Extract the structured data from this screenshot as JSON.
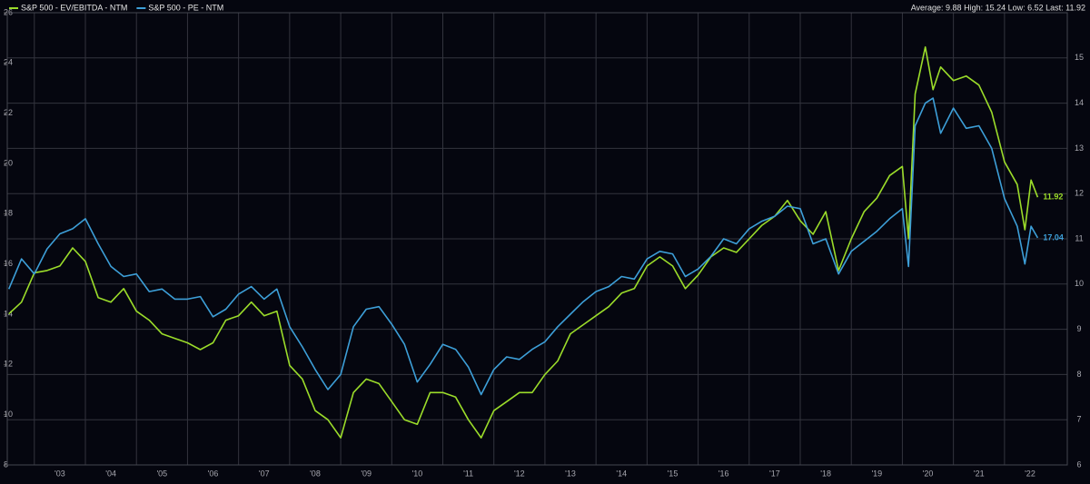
{
  "chart_data": {
    "type": "line",
    "stats": "Average: 9.88 High: 15.24 Low: 6.52 Last: 11.92",
    "legend": "top-left",
    "grid": true,
    "x": [
      2002.5,
      2002.75,
      2003,
      2003.25,
      2003.5,
      2003.75,
      2004,
      2004.25,
      2004.5,
      2004.75,
      2005,
      2005.25,
      2005.5,
      2005.75,
      2006,
      2006.25,
      2006.5,
      2006.75,
      2007,
      2007.25,
      2007.5,
      2007.75,
      2008,
      2008.25,
      2008.5,
      2008.75,
      2009,
      2009.25,
      2009.5,
      2009.75,
      2010,
      2010.25,
      2010.5,
      2010.75,
      2011,
      2011.25,
      2011.5,
      2011.75,
      2012,
      2012.25,
      2012.5,
      2012.75,
      2013,
      2013.25,
      2013.5,
      2013.75,
      2014,
      2014.25,
      2014.5,
      2014.75,
      2015,
      2015.25,
      2015.5,
      2015.75,
      2016,
      2016.25,
      2016.5,
      2016.75,
      2017,
      2017.25,
      2017.5,
      2017.75,
      2018,
      2018.25,
      2018.5,
      2018.75,
      2019,
      2019.25,
      2019.5,
      2019.75,
      2020,
      2020.12,
      2020.25,
      2020.45,
      2020.6,
      2020.75,
      2021,
      2021.25,
      2021.5,
      2021.75,
      2022,
      2022.25,
      2022.4,
      2022.52,
      2022.65
    ],
    "series": [
      {
        "name": "S&P 500 - EV/EBITDA - NTM",
        "color": "#9bdc2a",
        "axis": "y2",
        "values": [
          9.34,
          9.6,
          10.25,
          10.3,
          10.4,
          10.8,
          10.5,
          9.7,
          9.6,
          9.9,
          9.4,
          9.2,
          8.9,
          8.8,
          8.7,
          8.55,
          8.7,
          9.2,
          9.3,
          9.6,
          9.3,
          9.4,
          8.2,
          7.9,
          7.2,
          7.0,
          6.6,
          7.6,
          7.9,
          7.8,
          7.4,
          7.0,
          6.9,
          7.6,
          7.6,
          7.5,
          7.0,
          6.6,
          7.2,
          7.4,
          7.6,
          7.6,
          8.0,
          8.3,
          8.9,
          9.1,
          9.3,
          9.5,
          9.8,
          9.9,
          10.4,
          10.6,
          10.4,
          9.9,
          10.2,
          10.6,
          10.8,
          10.7,
          11.0,
          11.3,
          11.5,
          11.85,
          11.4,
          11.1,
          11.6,
          10.3,
          11.0,
          11.6,
          11.9,
          12.4,
          12.6,
          11.0,
          14.2,
          15.24,
          14.3,
          14.8,
          14.5,
          14.6,
          14.4,
          13.8,
          12.7,
          12.2,
          11.2,
          12.3,
          11.92
        ]
      },
      {
        "name": "S&P 500 - PE - NTM",
        "color": "#3d9fd8",
        "values": [
          15.0,
          16.2,
          15.6,
          16.6,
          17.2,
          17.4,
          17.8,
          16.8,
          15.9,
          15.5,
          15.6,
          14.9,
          15.0,
          14.6,
          14.6,
          14.7,
          13.9,
          14.2,
          14.8,
          15.1,
          14.6,
          15.0,
          13.5,
          12.7,
          11.8,
          11.0,
          11.6,
          13.5,
          14.2,
          14.3,
          13.6,
          12.8,
          11.3,
          12.0,
          12.8,
          12.6,
          11.9,
          10.8,
          11.8,
          12.3,
          12.2,
          12.6,
          12.9,
          13.5,
          14.0,
          14.5,
          14.9,
          15.1,
          15.5,
          15.4,
          16.2,
          16.5,
          16.4,
          15.5,
          15.8,
          16.3,
          17.0,
          16.8,
          17.4,
          17.7,
          17.9,
          18.3,
          18.2,
          16.8,
          17.0,
          15.6,
          16.5,
          16.9,
          17.3,
          17.8,
          18.2,
          15.9,
          21.5,
          22.4,
          22.6,
          21.2,
          22.2,
          21.4,
          21.5,
          20.6,
          18.6,
          17.5,
          16.0,
          17.5,
          17.04
        ]
      }
    ],
    "xlim": [
      2002.47,
      2023.23
    ],
    "xticks": [
      {
        "value": 2003,
        "label": "'03"
      },
      {
        "value": 2004,
        "label": "'04"
      },
      {
        "value": 2005,
        "label": "'05"
      },
      {
        "value": 2006,
        "label": "'06"
      },
      {
        "value": 2007,
        "label": "'07"
      },
      {
        "value": 2008,
        "label": "'08"
      },
      {
        "value": 2009,
        "label": "'09"
      },
      {
        "value": 2010,
        "label": "'10"
      },
      {
        "value": 2011,
        "label": "'11"
      },
      {
        "value": 2012,
        "label": "'12"
      },
      {
        "value": 2013,
        "label": "'13"
      },
      {
        "value": 2014,
        "label": "'14"
      },
      {
        "value": 2015,
        "label": "'15"
      },
      {
        "value": 2016,
        "label": "'16"
      },
      {
        "value": 2017,
        "label": "'17"
      },
      {
        "value": 2018,
        "label": "'18"
      },
      {
        "value": 2019,
        "label": "'19"
      },
      {
        "value": 2020,
        "label": "'20"
      },
      {
        "value": 2021,
        "label": "'21"
      },
      {
        "value": 2022,
        "label": "'22"
      }
    ],
    "ylim": [
      8,
      26
    ],
    "yticks": [
      8,
      10,
      12,
      14,
      16,
      18,
      20,
      22,
      24,
      26
    ],
    "y2lim": [
      6,
      16
    ],
    "y2ticks": [
      6,
      7,
      8,
      9,
      10,
      11,
      12,
      13,
      14,
      15
    ]
  }
}
